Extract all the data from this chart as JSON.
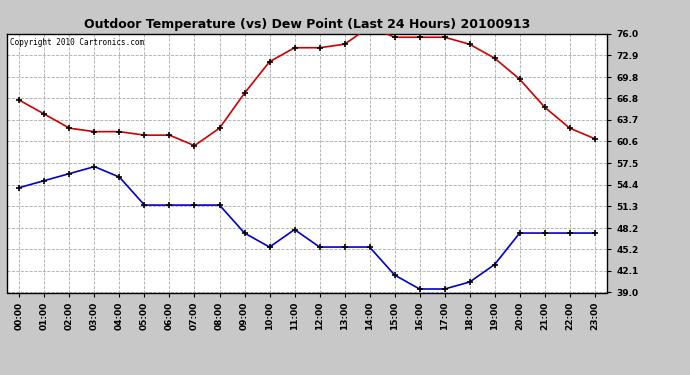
{
  "title": "Outdoor Temperature (vs) Dew Point (Last 24 Hours) 20100913",
  "copyright": "Copyright 2010 Cartronics.com",
  "x_labels": [
    "00:00",
    "01:00",
    "02:00",
    "03:00",
    "04:00",
    "05:00",
    "06:00",
    "07:00",
    "08:00",
    "09:00",
    "10:00",
    "11:00",
    "12:00",
    "13:00",
    "14:00",
    "15:00",
    "16:00",
    "17:00",
    "18:00",
    "19:00",
    "20:00",
    "21:00",
    "22:00",
    "23:00"
  ],
  "temp_red": [
    66.5,
    64.5,
    62.5,
    62.0,
    62.0,
    61.5,
    61.5,
    60.0,
    62.5,
    67.5,
    72.0,
    74.0,
    74.0,
    74.5,
    77.0,
    75.5,
    75.5,
    75.5,
    74.5,
    72.5,
    69.5,
    65.5,
    62.5,
    61.0
  ],
  "dew_blue": [
    54.0,
    55.0,
    56.0,
    57.0,
    55.5,
    51.5,
    51.5,
    51.5,
    51.5,
    47.5,
    45.5,
    48.0,
    45.5,
    45.5,
    45.5,
    41.5,
    39.5,
    39.5,
    40.5,
    43.0,
    47.5,
    47.5,
    47.5,
    47.5
  ],
  "ylim": [
    39.0,
    76.0
  ],
  "yticks": [
    39.0,
    42.1,
    45.2,
    48.2,
    51.3,
    54.4,
    57.5,
    60.6,
    63.7,
    66.8,
    69.8,
    72.9,
    76.0
  ],
  "bg_color": "#c8c8c8",
  "plot_bg": "#ffffff",
  "grid_color": "#aaaaaa",
  "line_red": "#cc0000",
  "line_blue": "#0000cc",
  "title_color": "#000000",
  "copyright_color": "#000000",
  "title_fontsize": 9,
  "tick_fontsize": 6.5,
  "copyright_fontsize": 5.5
}
